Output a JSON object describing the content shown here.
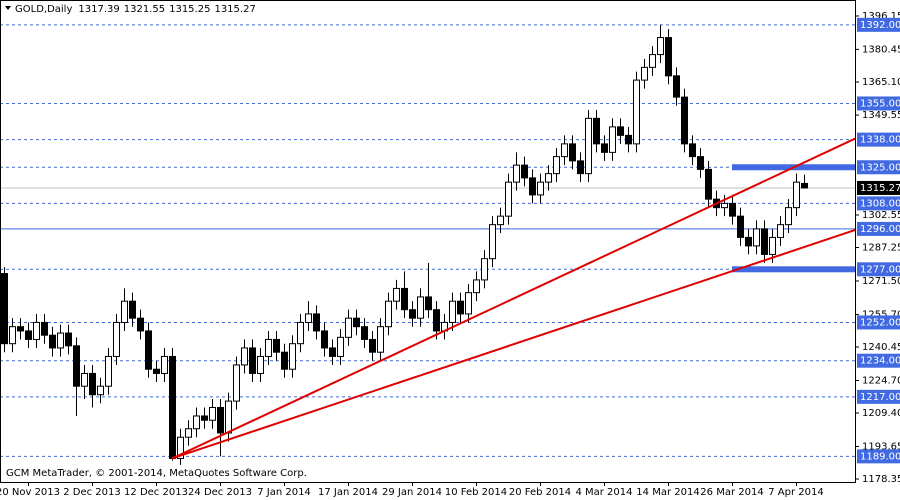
{
  "chart_data": {
    "type": "candlestick",
    "title": "GOLD,Daily",
    "footer": "GCM MetaTrader, © 2001-2014, MetaQuotes Software Corp.",
    "categories": [
      null,
      null,
      null,
      "20 Nov 2013",
      null,
      null,
      null,
      null,
      null,
      null,
      null,
      "2 Dec 2013",
      null,
      null,
      null,
      null,
      null,
      null,
      null,
      "12 Dec 2013",
      null,
      null,
      null,
      null,
      null,
      null,
      null,
      "24 Dec 2013",
      null,
      null,
      null,
      null,
      null,
      null,
      null,
      "7 Jan 2014",
      null,
      null,
      null,
      null,
      null,
      null,
      null,
      "17 Jan 2014",
      null,
      null,
      null,
      null,
      null,
      null,
      null,
      "29 Jan 2014",
      null,
      null,
      null,
      null,
      null,
      null,
      null,
      "10 Feb 2014",
      null,
      null,
      null,
      null,
      null,
      null,
      null,
      "20 Feb 2014",
      null,
      null,
      null,
      null,
      null,
      null,
      null,
      "4 Mar 2014",
      null,
      null,
      null,
      null,
      null,
      null,
      null,
      "14 Mar 2014",
      null,
      null,
      null,
      null,
      null,
      null,
      null,
      "26 Mar 2014",
      null,
      null,
      null,
      null,
      null,
      null,
      null,
      "7 Apr 2014",
      null
    ],
    "open": [
      1275,
      1242,
      1250,
      1248,
      1244,
      1252,
      1246,
      1240,
      1247,
      1241,
      1222,
      1228,
      1218,
      1222,
      1236,
      1252,
      1262,
      1254,
      1248,
      1230,
      1228,
      1236,
      1188,
      1198,
      1202,
      1208,
      1206,
      1212,
      1200,
      1215,
      1232,
      1240,
      1228,
      1236,
      1244,
      1238,
      1230,
      1242,
      1252,
      1256,
      1248,
      1240,
      1236,
      1245,
      1254,
      1250,
      1244,
      1238,
      1250,
      1262,
      1268,
      1258,
      1254,
      1264,
      1258,
      1248,
      1252,
      1262,
      1256,
      1266,
      1272,
      1282,
      1298,
      1302,
      1318,
      1326,
      1320,
      1312,
      1318,
      1322,
      1330,
      1336,
      1328,
      1322,
      1348,
      1336,
      1332,
      1344,
      1340,
      1336,
      1366,
      1372,
      1378,
      1386,
      1368,
      1358,
      1336,
      1330,
      1324,
      1310,
      1306,
      1308,
      1302,
      1292,
      1288,
      1296,
      1284,
      1292,
      1298,
      1306,
      1317.39
    ],
    "high": [
      1278,
      1254,
      1254,
      1252,
      1256,
      1256,
      1250,
      1251,
      1251,
      1245,
      1232,
      1232,
      1226,
      1240,
      1256,
      1268,
      1266,
      1258,
      1252,
      1234,
      1240,
      1240,
      1202,
      1206,
      1212,
      1212,
      1216,
      1216,
      1219,
      1236,
      1244,
      1244,
      1240,
      1248,
      1248,
      1242,
      1246,
      1256,
      1262,
      1260,
      1252,
      1244,
      1249,
      1258,
      1258,
      1254,
      1248,
      1254,
      1266,
      1272,
      1276,
      1262,
      1268,
      1280,
      1262,
      1256,
      1266,
      1266,
      1270,
      1276,
      1286,
      1302,
      1306,
      1322,
      1332,
      1330,
      1324,
      1322,
      1326,
      1334,
      1340,
      1340,
      1332,
      1352,
      1352,
      1340,
      1348,
      1348,
      1344,
      1370,
      1376,
      1382,
      1392,
      1390,
      1372,
      1362,
      1340,
      1334,
      1328,
      1314,
      1312,
      1312,
      1306,
      1296,
      1300,
      1300,
      1296,
      1302,
      1310,
      1322,
      1321.55
    ],
    "low": [
      1238,
      1238,
      1244,
      1240,
      1240,
      1242,
      1236,
      1236,
      1237,
      1208,
      1216,
      1212,
      1214,
      1218,
      1232,
      1248,
      1250,
      1244,
      1226,
      1224,
      1224,
      1187,
      1185,
      1194,
      1198,
      1202,
      1202,
      1189,
      1196,
      1211,
      1228,
      1224,
      1224,
      1232,
      1234,
      1226,
      1226,
      1238,
      1248,
      1244,
      1236,
      1232,
      1232,
      1241,
      1246,
      1240,
      1234,
      1234,
      1246,
      1258,
      1254,
      1250,
      1250,
      1254,
      1244,
      1244,
      1248,
      1252,
      1252,
      1262,
      1268,
      1278,
      1294,
      1298,
      1314,
      1316,
      1308,
      1308,
      1314,
      1318,
      1326,
      1324,
      1318,
      1318,
      1332,
      1328,
      1328,
      1336,
      1332,
      1332,
      1362,
      1368,
      1374,
      1364,
      1354,
      1332,
      1326,
      1320,
      1306,
      1302,
      1302,
      1298,
      1288,
      1284,
      1284,
      1280,
      1280,
      1288,
      1294,
      1302,
      1315.25
    ],
    "close": [
      1242,
      1250,
      1248,
      1244,
      1252,
      1246,
      1240,
      1247,
      1241,
      1222,
      1228,
      1218,
      1222,
      1236,
      1252,
      1262,
      1254,
      1248,
      1230,
      1228,
      1236,
      1188,
      1198,
      1202,
      1208,
      1206,
      1212,
      1200,
      1215,
      1232,
      1240,
      1228,
      1236,
      1244,
      1238,
      1230,
      1242,
      1252,
      1256,
      1248,
      1240,
      1236,
      1245,
      1254,
      1250,
      1244,
      1238,
      1250,
      1262,
      1268,
      1258,
      1254,
      1264,
      1258,
      1248,
      1252,
      1262,
      1256,
      1266,
      1272,
      1282,
      1298,
      1302,
      1318,
      1326,
      1320,
      1312,
      1318,
      1322,
      1330,
      1336,
      1328,
      1322,
      1348,
      1336,
      1332,
      1344,
      1340,
      1336,
      1366,
      1372,
      1378,
      1386,
      1368,
      1358,
      1336,
      1330,
      1324,
      1310,
      1306,
      1308,
      1302,
      1292,
      1288,
      1296,
      1284,
      1292,
      1298,
      1306,
      1318,
      1315.27
    ],
    "up_color": "#ffffff",
    "down_color": "#000000",
    "ylim": [
      1176.94,
      1403.68
    ],
    "yticks": [
      1396.15,
      1380.45,
      {
        "value": 1365.1,
        "label": "1365.10"
      },
      1349.55,
      1302.55,
      1287.25,
      {
        "value": 1271.5,
        "label": "1271.50"
      },
      {
        "value": 1255.7,
        "label": "1255.70"
      },
      1240.45,
      {
        "value": 1224.7,
        "label": "1224.70"
      },
      {
        "value": 1209.4,
        "label": "1209.40"
      },
      1193.65,
      1178.35
    ],
    "level_color": "#4169e1",
    "levels": [
      {
        "value": 1392,
        "label": "1392.00",
        "style": "dashed"
      },
      {
        "value": 1355,
        "label": "1355.00",
        "style": "dashed"
      },
      {
        "value": 1338,
        "label": "1338.00",
        "style": "dashed"
      },
      {
        "value": 1325,
        "label": "1325.00",
        "style": "dashed",
        "highlight_from": 91
      },
      {
        "value": 1308,
        "label": "1308.00",
        "style": "dashed"
      },
      {
        "value": 1296,
        "label": "1296.00",
        "style": "solid"
      },
      {
        "value": 1277,
        "label": "1277.00",
        "style": "dashed",
        "highlight_from": 91
      },
      {
        "value": 1252,
        "label": "1252.00",
        "style": "dashed"
      },
      {
        "value": 1234,
        "label": "1234.00",
        "style": "dashed"
      },
      {
        "value": 1217,
        "label": "1217.00",
        "style": "dashed"
      },
      {
        "value": 1189,
        "label": "1189.00",
        "style": "dashed"
      }
    ],
    "trend_color": "#e00000",
    "trendlines": [
      {
        "x": [
          21,
          106.4
        ],
        "y": [
          1188,
          1338.5
        ]
      },
      {
        "x": [
          21,
          106.4
        ],
        "y": [
          1188,
          1295.5
        ]
      }
    ]
  }
}
